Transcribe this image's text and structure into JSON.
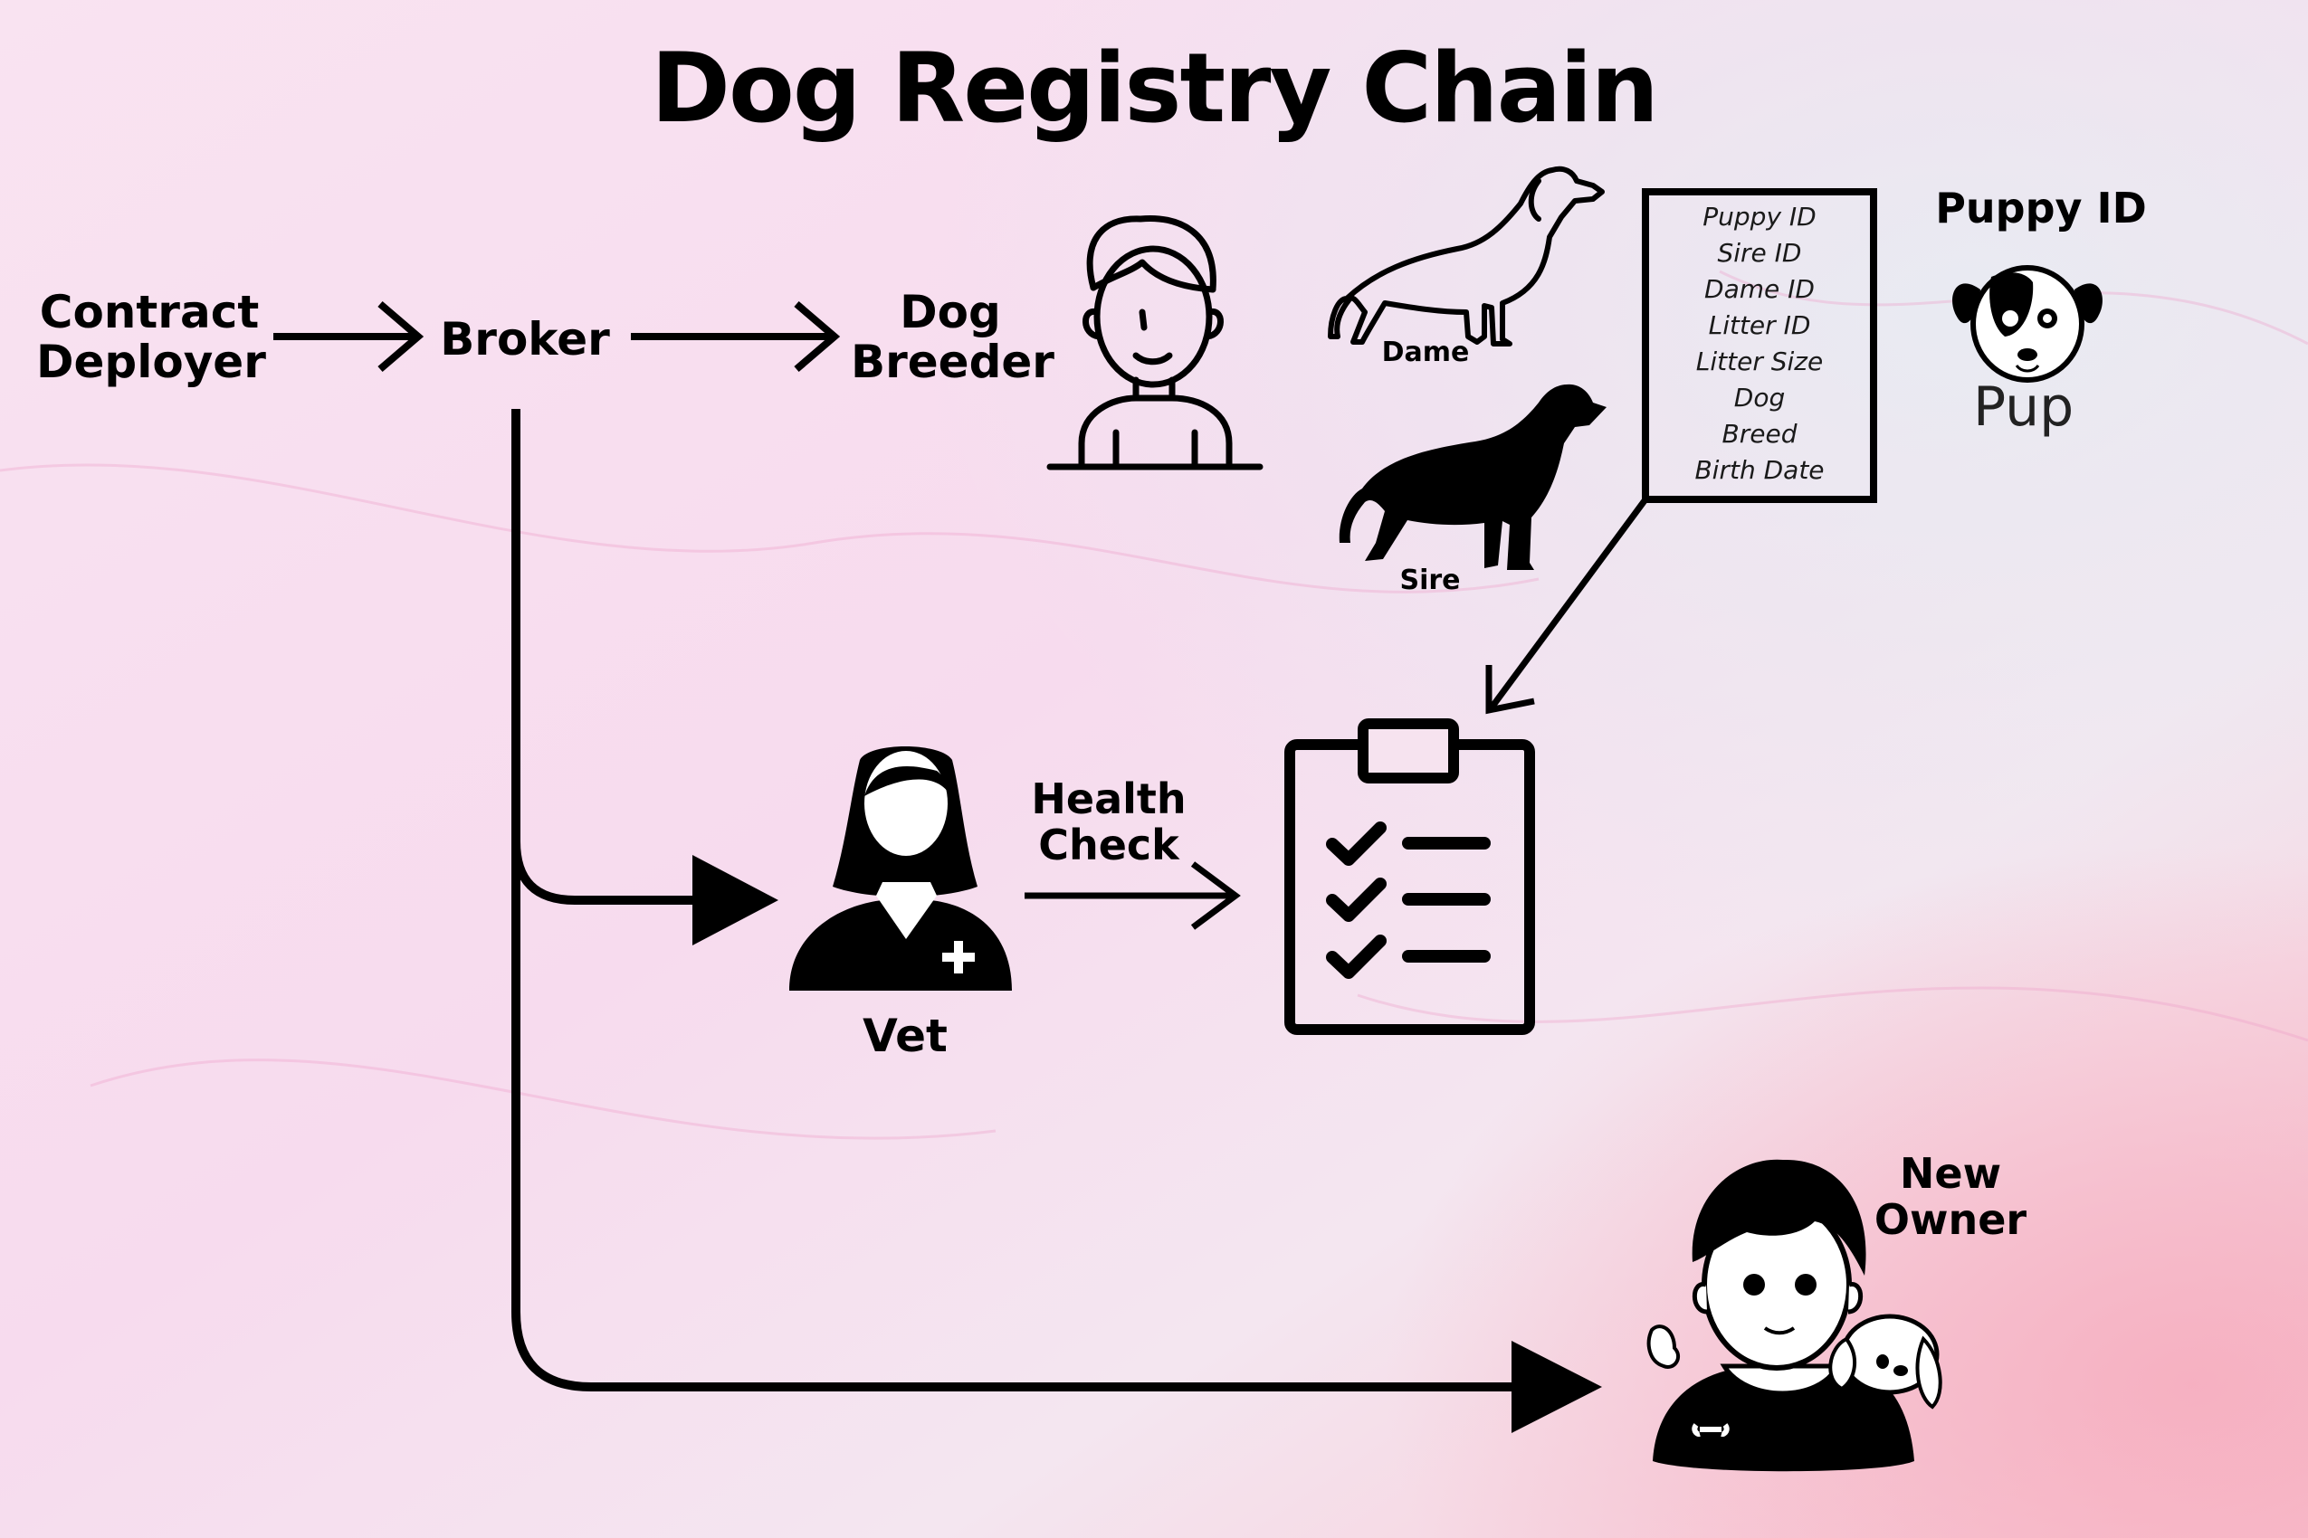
{
  "title": "Dog Registry Chain",
  "nodes": {
    "contract_deployer": [
      "Contract",
      "Deployer"
    ],
    "broker": "Broker",
    "dog_breeder": [
      "Dog",
      "Breeder"
    ],
    "dame": "Dame",
    "sire": "Sire",
    "vet": "Vet",
    "health_check": [
      "Health",
      "Check"
    ],
    "new_owner": [
      "New",
      "Owner"
    ],
    "puppy_id": "Puppy ID",
    "pup": "Pup"
  },
  "record_fields": [
    "Puppy ID",
    "Sire ID",
    "Dame ID",
    "Litter ID",
    "Litter Size",
    "Dog",
    "Breed",
    "Birth Date"
  ],
  "icons": [
    "person-icon",
    "dog-outline-icon",
    "dog-silhouette-icon",
    "document-icon",
    "puppy-face-icon",
    "vet-icon",
    "clipboard-checklist-icon",
    "owner-with-puppy-icon",
    "arrow-icon"
  ],
  "colors": {
    "background_light": "#f6e6f2",
    "background_pink": "#f7c8da",
    "ink": "#000000"
  }
}
